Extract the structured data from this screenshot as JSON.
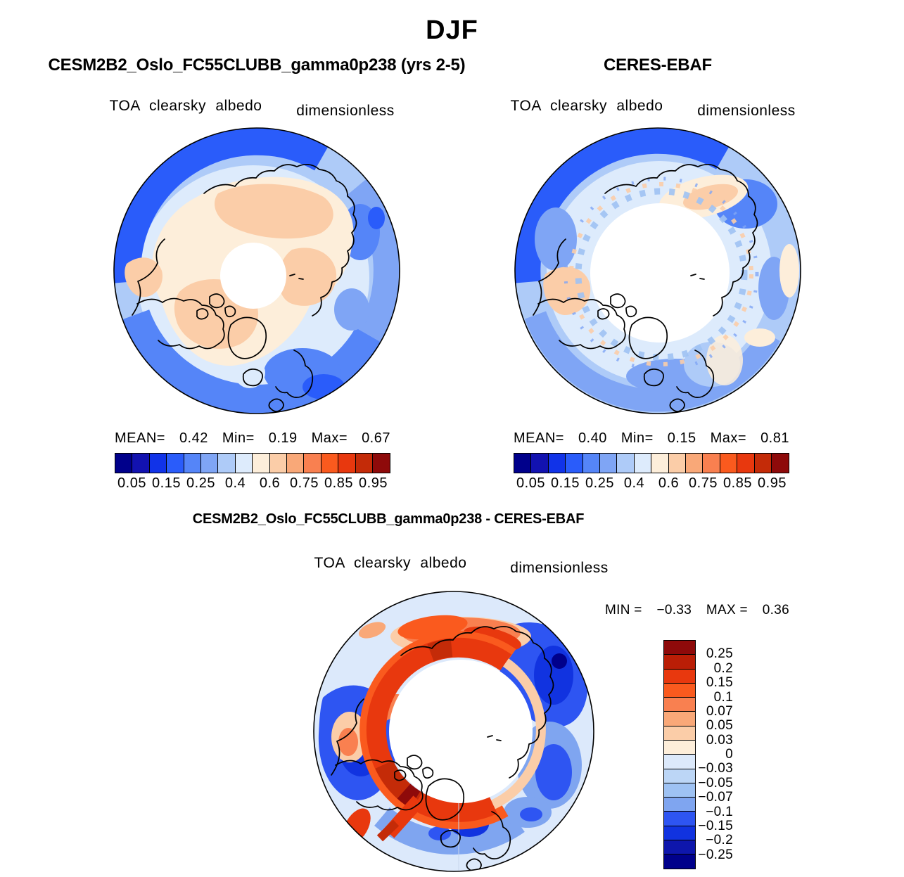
{
  "title": "DJF",
  "panels": {
    "model": {
      "header": "CESM2B2_Oslo_FC55CLUBB_gamma0p238 (yrs 2-5)",
      "field_label": "TOA clearsky albedo",
      "units_label": "dimensionless",
      "stats": {
        "mean_label": "MEAN=",
        "mean": "0.42",
        "min_label": "Min=",
        "min": "0.19",
        "max_label": "Max=",
        "max": "0.67"
      }
    },
    "obs": {
      "header": "CERES-EBAF",
      "field_label": "TOA clearsky albedo",
      "units_label": "dimensionless",
      "stats": {
        "mean_label": "MEAN=",
        "mean": "0.40",
        "min_label": "Min=",
        "min": "0.15",
        "max_label": "Max=",
        "max": "0.81"
      }
    },
    "diff": {
      "header": "CESM2B2_Oslo_FC55CLUBB_gamma0p238 - CERES-EBAF",
      "field_label": "TOA clearsky albedo",
      "units_label": "dimensionless",
      "stats": {
        "min_label": "MIN =",
        "min": "−0.33",
        "max_label": "MAX =",
        "max": "0.36"
      }
    }
  },
  "albedo_colorbar": {
    "colors": [
      "#00008B",
      "#1212B0",
      "#1133E8",
      "#2A5CFA",
      "#5585F8",
      "#7FA5F5",
      "#AECBF8",
      "#DDEBFC",
      "#FDEEDA",
      "#FBCDA8",
      "#F9A878",
      "#F98050",
      "#FA5A1E",
      "#E8380E",
      "#C42B08",
      "#8E0A0A"
    ],
    "tick_labels": [
      "0.05",
      "0.15",
      "0.25",
      "0.4",
      "0.6",
      "0.75",
      "0.85",
      "0.95"
    ]
  },
  "diff_colorbar": {
    "colors": [
      "#8E0A0A",
      "#BA1E06",
      "#E8380E",
      "#FA5A1E",
      "#F98050",
      "#F9A878",
      "#FBCDA8",
      "#FDEEDA",
      "#DCE9FB",
      "#BCD6F6",
      "#9EC2F3",
      "#7FA5F0",
      "#2E55F2",
      "#1133E0",
      "#0E16AC",
      "#00008B"
    ],
    "tick_labels": [
      "0.25",
      "0.2",
      "0.15",
      "0.1",
      "0.07",
      "0.05",
      "0.03",
      "0",
      "−0.03",
      "−0.05",
      "−0.07",
      "−0.1",
      "−0.15",
      "−0.2",
      "−0.25"
    ]
  },
  "chart_data": [
    {
      "type": "heatmap",
      "subtype": "polar-stereographic-contour-map",
      "season": "DJF",
      "title": "CESM2B2_Oslo_FC55CLUBB_gamma0p238 (yrs 2-5)",
      "variable": "TOA clearsky albedo",
      "units": "dimensionless",
      "stats": {
        "mean": 0.42,
        "min": 0.19,
        "max": 0.67
      },
      "contour_levels": [
        0.05,
        0.1,
        0.15,
        0.2,
        0.25,
        0.3,
        0.4,
        0.5,
        0.6,
        0.7,
        0.75,
        0.8,
        0.85,
        0.9,
        0.95
      ],
      "labeled_levels": [
        0.05,
        0.15,
        0.25,
        0.4,
        0.6,
        0.75,
        0.85,
        0.95
      ],
      "legend_position": "bottom",
      "notes": "Northern-hemisphere polar view; low albedo (blues) over open ocean, high albedo (peach/white) over sea ice, snow-covered land and masked polar cap"
    },
    {
      "type": "heatmap",
      "subtype": "polar-stereographic-contour-map",
      "season": "DJF",
      "title": "CERES-EBAF",
      "variable": "TOA clearsky albedo",
      "units": "dimensionless",
      "stats": {
        "mean": 0.4,
        "min": 0.15,
        "max": 0.81
      },
      "contour_levels": [
        0.05,
        0.1,
        0.15,
        0.2,
        0.25,
        0.3,
        0.4,
        0.5,
        0.6,
        0.7,
        0.75,
        0.8,
        0.85,
        0.9,
        0.95
      ],
      "labeled_levels": [
        0.05,
        0.15,
        0.25,
        0.4,
        0.6,
        0.75,
        0.85,
        0.95
      ],
      "legend_position": "bottom",
      "notes": "Observed field; mostly light blues with large white masked polar-night cap and speckled retrieval ring at the cap edge"
    },
    {
      "type": "heatmap",
      "subtype": "polar-stereographic-contour-map",
      "season": "DJF",
      "title": "CESM2B2_Oslo_FC55CLUBB_gamma0p238 - CERES-EBAF",
      "variable": "TOA clearsky albedo",
      "units": "dimensionless",
      "stats": {
        "min": -0.33,
        "max": 0.36
      },
      "contour_levels": [
        0.25,
        0.2,
        0.15,
        0.1,
        0.07,
        0.05,
        0.03,
        0,
        -0.03,
        -0.05,
        -0.07,
        -0.1,
        -0.15,
        -0.2,
        -0.25
      ],
      "legend_position": "right",
      "notes": "Model minus observations; positive (red) ring at sea-ice edge around white masked cap, negative (blue) over N Pacific, N Atlantic and high-latitude oceans"
    }
  ]
}
